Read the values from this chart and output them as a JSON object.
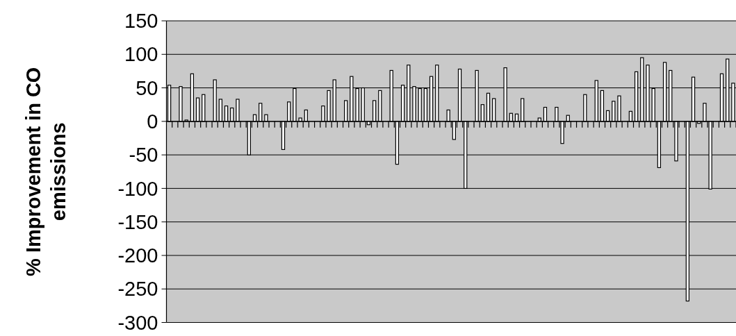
{
  "chart_data": {
    "type": "bar",
    "ylabel": "% Improvement in CO emissions",
    "categories": [
      null,
      null,
      null,
      null,
      null,
      null,
      null,
      null,
      null,
      null,
      null,
      null,
      null,
      null,
      null,
      null,
      null,
      null,
      null,
      null,
      null,
      null,
      null,
      null,
      null,
      null,
      null,
      null,
      null,
      null,
      null,
      null,
      null,
      null,
      null,
      null,
      null,
      null,
      null,
      null,
      null,
      null,
      null,
      null,
      null,
      null,
      null,
      null,
      null,
      null,
      null,
      null,
      null,
      null,
      null,
      null,
      null,
      null,
      null,
      null,
      null,
      null,
      null,
      null,
      null,
      null,
      null,
      null,
      null,
      null,
      null,
      null,
      null,
      null,
      null,
      null,
      null,
      null,
      null,
      null,
      null,
      null,
      null,
      null,
      null,
      null,
      null,
      null,
      null,
      null,
      null,
      null,
      null,
      null,
      null,
      null,
      null,
      null,
      null,
      null
    ],
    "values": [
      54,
      null,
      52,
      2,
      71,
      35,
      40,
      null,
      62,
      33,
      23,
      20,
      33,
      null,
      -50,
      10,
      27,
      10,
      null,
      null,
      -42,
      29,
      49,
      5,
      17,
      null,
      null,
      23,
      46,
      62,
      null,
      31,
      67,
      49,
      50,
      -5,
      31,
      46,
      null,
      76,
      -64,
      54,
      84,
      52,
      49,
      49,
      67,
      84,
      null,
      17,
      -27,
      78,
      -100,
      null,
      76,
      25,
      42,
      34,
      null,
      80,
      12,
      11,
      34,
      null,
      null,
      5,
      21,
      null,
      21,
      -33,
      9,
      null,
      null,
      40,
      null,
      61,
      46,
      16,
      30,
      38,
      null,
      15,
      74,
      95,
      84,
      49,
      -69,
      88,
      76,
      -59,
      null,
      -268,
      66,
      -3,
      27,
      -101,
      null,
      71,
      93,
      57
    ],
    "color": "#ffffff",
    "ylim": [
      -300,
      150
    ],
    "yticks": [
      -300,
      -250,
      -200,
      -150,
      -100,
      -50,
      0,
      50,
      100,
      150
    ],
    "grid": "y"
  }
}
